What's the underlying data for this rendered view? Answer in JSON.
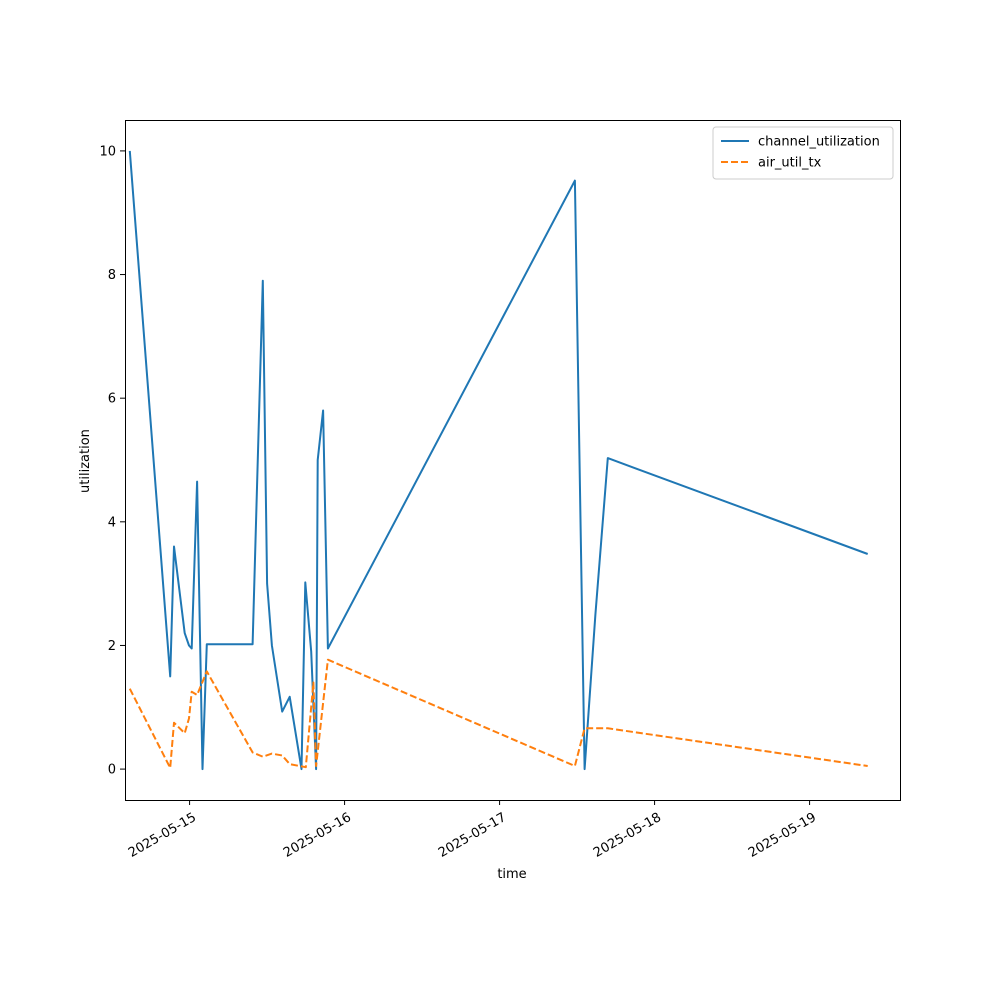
{
  "chart_data": {
    "type": "line",
    "title": "",
    "xlabel": "time",
    "ylabel": "utilization",
    "x_type": "datetime",
    "xlim": [
      "2025-05-14 14:00",
      "2025-05-19 14:00"
    ],
    "ylim": [
      -0.5,
      10.5
    ],
    "x_ticks": [
      "2025-05-15",
      "2025-05-16",
      "2025-05-17",
      "2025-05-18",
      "2025-05-19"
    ],
    "y_ticks": [
      0,
      2,
      4,
      6,
      8,
      10
    ],
    "grid": false,
    "legend_position": "top-right",
    "series": [
      {
        "name": "channel_utilization",
        "color": "#1f77b4",
        "style": "solid",
        "points": [
          [
            "2025-05-14 14:45",
            10.0
          ],
          [
            "2025-05-14 21:00",
            1.5
          ],
          [
            "2025-05-14 21:35",
            3.6
          ],
          [
            "2025-05-14 23:15",
            2.2
          ],
          [
            "2025-05-14 23:55",
            2.0
          ],
          [
            "2025-05-15 00:20",
            1.95
          ],
          [
            "2025-05-15 01:10",
            4.65
          ],
          [
            "2025-05-15 02:00",
            0.0
          ],
          [
            "2025-05-15 02:40",
            2.02
          ],
          [
            "2025-05-15 09:45",
            2.02
          ],
          [
            "2025-05-15 11:20",
            7.9
          ],
          [
            "2025-05-15 12:00",
            3.0
          ],
          [
            "2025-05-15 12:45",
            2.0
          ],
          [
            "2025-05-15 14:20",
            0.93
          ],
          [
            "2025-05-15 15:30",
            1.17
          ],
          [
            "2025-05-15 17:20",
            0.0
          ],
          [
            "2025-05-15 17:55",
            3.02
          ],
          [
            "2025-05-15 18:50",
            1.9
          ],
          [
            "2025-05-15 19:35",
            0.0
          ],
          [
            "2025-05-15 19:50",
            5.0
          ],
          [
            "2025-05-15 20:40",
            5.8
          ],
          [
            "2025-05-15 21:25",
            1.95
          ],
          [
            "2025-05-17 11:40",
            9.52
          ],
          [
            "2025-05-17 13:10",
            0.0
          ],
          [
            "2025-05-17 14:50",
            2.5
          ],
          [
            "2025-05-17 16:45",
            5.03
          ],
          [
            "2025-05-19 09:00",
            3.48
          ]
        ]
      },
      {
        "name": "air_util_tx",
        "color": "#ff7f0e",
        "style": "dashed",
        "points": [
          [
            "2025-05-14 14:45",
            1.3
          ],
          [
            "2025-05-14 21:00",
            0.02
          ],
          [
            "2025-05-14 21:35",
            0.75
          ],
          [
            "2025-05-14 23:15",
            0.58
          ],
          [
            "2025-05-14 23:55",
            0.82
          ],
          [
            "2025-05-15 00:20",
            1.25
          ],
          [
            "2025-05-15 01:10",
            1.2
          ],
          [
            "2025-05-15 02:40",
            1.58
          ],
          [
            "2025-05-15 09:45",
            0.27
          ],
          [
            "2025-05-15 11:20",
            0.2
          ],
          [
            "2025-05-15 12:45",
            0.25
          ],
          [
            "2025-05-15 14:20",
            0.22
          ],
          [
            "2025-05-15 15:30",
            0.08
          ],
          [
            "2025-05-15 18:00",
            0.03
          ],
          [
            "2025-05-15 19:10",
            1.4
          ],
          [
            "2025-05-15 19:35",
            0.05
          ],
          [
            "2025-05-15 21:25",
            1.77
          ],
          [
            "2025-05-17 11:40",
            0.05
          ],
          [
            "2025-05-17 13:10",
            0.66
          ],
          [
            "2025-05-17 16:45",
            0.66
          ],
          [
            "2025-05-19 09:00",
            0.05
          ]
        ]
      }
    ]
  }
}
